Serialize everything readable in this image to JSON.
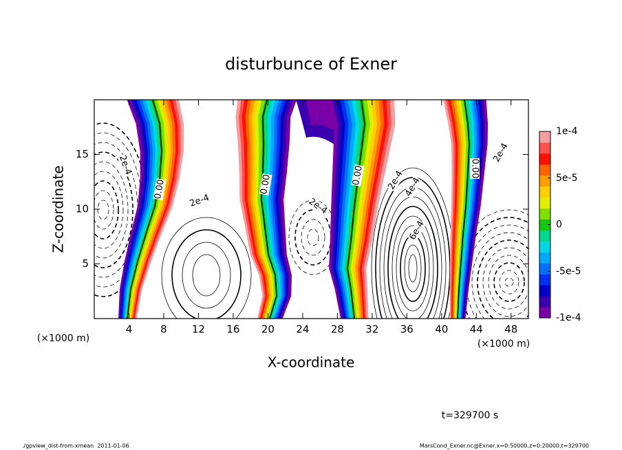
{
  "chart_data": {
    "type": "contour",
    "title": "disturbunce of Exner",
    "x_label": "X-coordinate",
    "y_label": "Z-coordinate",
    "x_unit": "(×1000 m)",
    "y_unit": "(×1000 m)",
    "xlim": [
      0,
      50
    ],
    "xticks": [
      4,
      8,
      12,
      16,
      20,
      24,
      28,
      32,
      36,
      40,
      44,
      48
    ],
    "ylim": [
      0,
      20
    ],
    "yticks": [
      5,
      10,
      15
    ],
    "colorbar": {
      "lim": [
        -0.0001,
        0.0001
      ],
      "ticks": [
        {
          "value": -0.0001,
          "label": "-1e-4"
        },
        {
          "value": -5e-05,
          "label": "-5e-5"
        },
        0,
        {
          "value": 5e-05,
          "label": "5e-5"
        },
        {
          "value": 0.0001,
          "label": "1e-4"
        }
      ],
      "colors": [
        "#7a00a8",
        "#3a00b0",
        "#0000c8",
        "#0030f0",
        "#0070ff",
        "#00a8ff",
        "#00d8e8",
        "#00d890",
        "#10c810",
        "#80e000",
        "#e0f000",
        "#ffd000",
        "#ffa000",
        "#ff6400",
        "#ff1000",
        "#ff5050",
        "#f4a0a0"
      ]
    },
    "contour_labels": [
      "2e-4",
      "0.00",
      "2e-4",
      "0.00",
      "2e-4",
      "0.00",
      "2e-4",
      "4e-4",
      "6e-4",
      "0.00",
      "2e-4"
    ],
    "time_label": "t=329700 s"
  },
  "footer": {
    "left": "./gpview_dist-from-xmean  2011-01-06",
    "right": "MarsCond_Exner.nc@Exner,x=0:50000,z=0:20000,t=329700"
  }
}
